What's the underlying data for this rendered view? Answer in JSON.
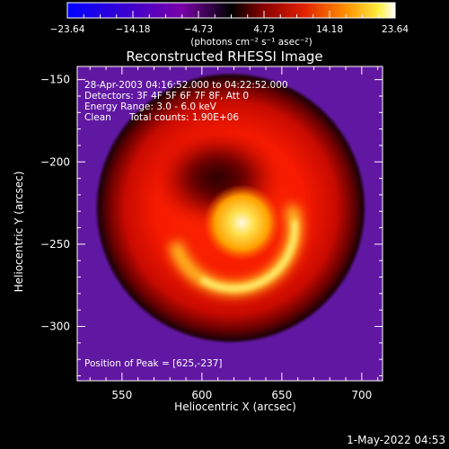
{
  "chart_data": {
    "type": "heatmap",
    "title": "Reconstructed RHESSI Image",
    "xlabel": "Heliocentric X (arcsec)",
    "ylabel": "Heliocentric Y (arcsec)",
    "xlim": [
      522,
      713
    ],
    "ylim": [
      -333,
      -142
    ],
    "x_ticks": [
      550,
      600,
      650,
      700
    ],
    "x_tick_labels": [
      "550",
      "600",
      "650",
      "700"
    ],
    "y_ticks": [
      -150,
      -200,
      -250,
      -300
    ],
    "y_tick_labels": [
      "−150",
      "−200",
      "−250",
      "−300"
    ],
    "colorbar": {
      "range": [
        -23.64,
        23.64
      ],
      "ticks": [
        -23.64,
        -14.18,
        -4.73,
        4.73,
        14.18,
        23.64
      ],
      "tick_labels": [
        "−23.64",
        "−14.18",
        "−4.73",
        "4.73",
        "14.18",
        "23.64"
      ],
      "unit_label": "(photons cm⁻² s⁻¹ asec⁻²)"
    },
    "annotations": {
      "time_range": "28-Apr-2003 04:16:52.000 to 04:22:52.000",
      "detectors": "Detectors: 3F 4F 5F 6F 7F 8F, Att 0",
      "energy": "Energy Range: 3.0 - 6.0 keV",
      "method": "Clean",
      "counts": "Total counts: 1.90E+06",
      "peak": "Position of Peak = [625,-237]"
    },
    "peak": [
      625,
      -237
    ],
    "disk": {
      "center": [
        618,
        -228
      ],
      "radius": 85
    },
    "hole": {
      "center": [
        610,
        -210
      ]
    },
    "arc": {
      "center": [
        620,
        -240
      ]
    }
  },
  "footer": {
    "date": "1-May-2022 04:53"
  },
  "colors": {
    "background": "#000000",
    "text": "#ffffff",
    "outer": "#5b16a6"
  }
}
